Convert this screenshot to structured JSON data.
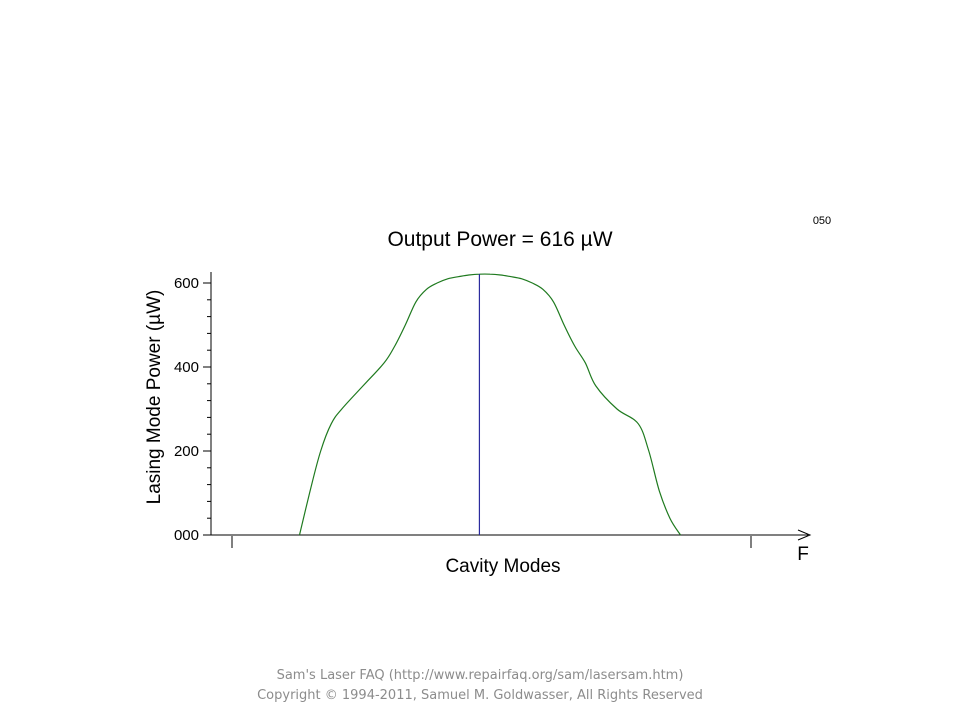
{
  "chart_data": {
    "type": "line",
    "title": "Output Power = 616 µW",
    "frame_number": "050",
    "xlabel": "Cavity Modes",
    "x_axis_end_label": "F",
    "ylabel": "Lasing Mode Power (µW)",
    "ylim": [
      0,
      640
    ],
    "y_ticks": [
      "000",
      "200",
      "400",
      "600"
    ],
    "y_tick_values": [
      0,
      200,
      400,
      600
    ],
    "grid": false,
    "series": [
      {
        "color": "#1f7a1f",
        "x": [
          -4.5,
          -4.25,
          -4.0,
          -3.75,
          -3.5,
          -3.0,
          -2.5,
          -2.25,
          -2.0,
          -1.75,
          -1.5,
          -1.25,
          -1.0,
          -0.75,
          -0.5,
          -0.25,
          0.0,
          0.25,
          0.5,
          0.75,
          1.0,
          1.25,
          1.5,
          1.75,
          2.0,
          2.25,
          2.5,
          3.0,
          3.5,
          3.75,
          4.0,
          4.25,
          4.5
        ],
        "y": [
          0,
          105,
          200,
          265,
          300,
          355,
          410,
          450,
          500,
          555,
          585,
          600,
          610,
          615,
          619,
          621,
          621,
          619,
          615,
          610,
          600,
          585,
          555,
          500,
          450,
          410,
          355,
          300,
          265,
          200,
          105,
          40,
          0
        ]
      }
    ],
    "marker_line": {
      "x": -0.25,
      "color": "#2b2b9e"
    }
  },
  "footer": {
    "line1": "Sam's Laser FAQ (http://www.repairfaq.org/sam/lasersam.htm)",
    "line2": "Copyright © 1994-2011, Samuel M. Goldwasser, All Rights Reserved"
  }
}
